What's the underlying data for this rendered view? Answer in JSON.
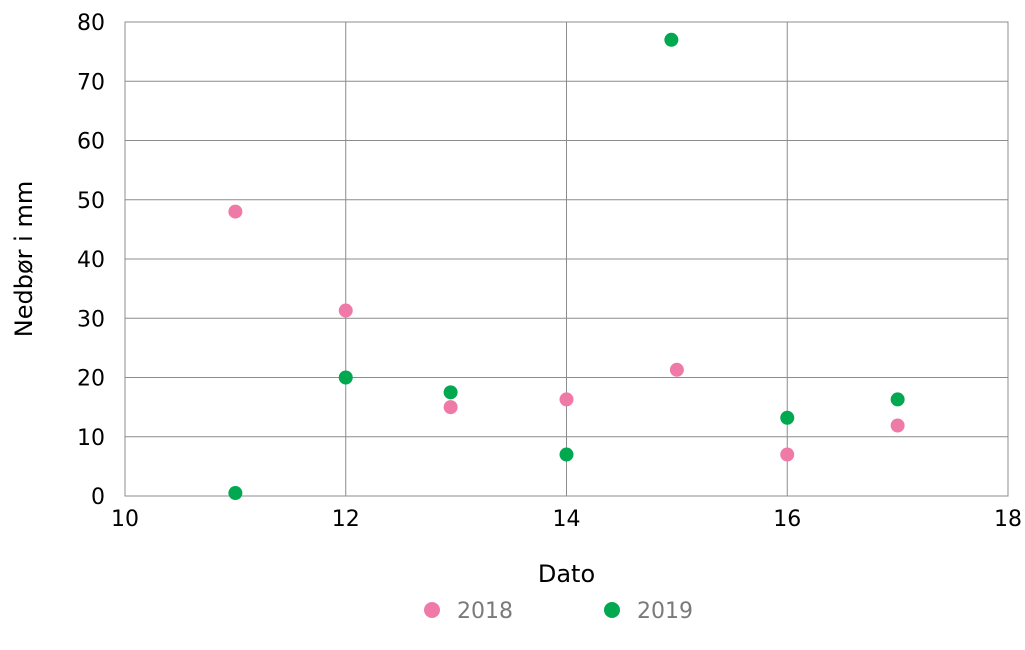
{
  "chart_data": {
    "type": "scatter",
    "xlabel": "Dato",
    "ylabel": "Nedbør i mm",
    "xlim": [
      10,
      18
    ],
    "ylim": [
      0,
      80
    ],
    "x_ticks": [
      10,
      12,
      14,
      16,
      18
    ],
    "y_ticks": [
      0,
      10,
      20,
      30,
      40,
      50,
      60,
      70,
      80
    ],
    "grid": true,
    "legend_position": "bottom",
    "series": [
      {
        "name": "2018",
        "color": "#ef7aa8",
        "points": [
          {
            "x": 11,
            "y": 48
          },
          {
            "x": 12,
            "y": 31.3
          },
          {
            "x": 12.95,
            "y": 15
          },
          {
            "x": 14,
            "y": 16.3
          },
          {
            "x": 15,
            "y": 21.3
          },
          {
            "x": 16,
            "y": 7
          },
          {
            "x": 17,
            "y": 11.9
          }
        ]
      },
      {
        "name": "2019",
        "color": "#00a84f",
        "points": [
          {
            "x": 11,
            "y": 0.5
          },
          {
            "x": 12,
            "y": 20
          },
          {
            "x": 12.95,
            "y": 17.5
          },
          {
            "x": 14,
            "y": 7
          },
          {
            "x": 14.95,
            "y": 77
          },
          {
            "x": 16,
            "y": 13.2
          },
          {
            "x": 17,
            "y": 16.3
          }
        ]
      }
    ]
  }
}
